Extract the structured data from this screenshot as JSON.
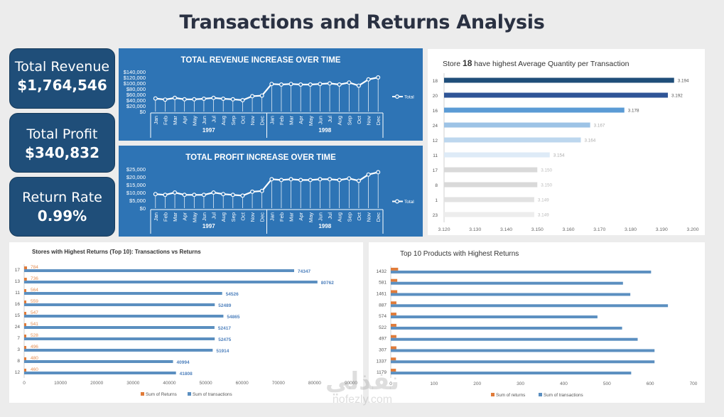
{
  "title": "Transactions and Returns Analysis",
  "colors": {
    "kpi_bg": "#1f4e79",
    "blue_panel": "#2e74b5",
    "bar_blue": "#5b8fc0",
    "bar_orange": "#e07b39",
    "label_orange": "#e38b4f"
  },
  "kpis": [
    {
      "label": "Total Revenue",
      "value": "$1,764,546"
    },
    {
      "label": "Total Profit",
      "value": "$340,832"
    },
    {
      "label": "Return Rate",
      "value": "0.99%"
    }
  ],
  "watermark": {
    "arabic": "نفذلي",
    "latin": "nofezly.com"
  },
  "chart_data": [
    {
      "id": "revenue",
      "type": "line",
      "title": "TOTAL REVENUE INCREASE OVER TIME",
      "categories": [
        "Jan",
        "Feb",
        "Mar",
        "Apr",
        "May",
        "Jun",
        "Jul",
        "Aug",
        "Sep",
        "Oct",
        "Nov",
        "Dec",
        "Jan",
        "Feb",
        "Mar",
        "Apr",
        "May",
        "Jun",
        "Jul",
        "Aug",
        "Sep",
        "Oct",
        "Nov",
        "Dec"
      ],
      "groups": [
        {
          "label": "1997",
          "count": 12
        },
        {
          "label": "1998",
          "count": 12
        }
      ],
      "series": [
        {
          "name": "Total",
          "values": [
            46000,
            42000,
            48000,
            43000,
            43000,
            45000,
            48000,
            45000,
            43000,
            40000,
            54000,
            56000,
            97000,
            95000,
            97000,
            95000,
            95000,
            97000,
            99000,
            95000,
            102000,
            91000,
            113000,
            120000
          ]
        }
      ],
      "yticks": [
        "$140,000",
        "$120,000",
        "$100,000",
        "$80,000",
        "$60,000",
        "$40,000",
        "$20,000",
        "$0"
      ],
      "ylim": [
        0,
        140000
      ],
      "legend": "Total",
      "grid": false
    },
    {
      "id": "profit",
      "type": "line",
      "title": "TOTAL PROFIT INCREASE OVER TIME",
      "categories": [
        "Jan",
        "Feb",
        "Mar",
        "Apr",
        "May",
        "Jun",
        "Jul",
        "Aug",
        "Sep",
        "Oct",
        "Nov",
        "Dec",
        "Jan",
        "Feb",
        "Mar",
        "Apr",
        "May",
        "Jun",
        "Jul",
        "Aug",
        "Sep",
        "Oct",
        "Nov",
        "Dec"
      ],
      "groups": [
        {
          "label": "1997",
          "count": 12
        },
        {
          "label": "1998",
          "count": 12
        }
      ],
      "series": [
        {
          "name": "Total",
          "values": [
            9000,
            8500,
            10000,
            8500,
            8500,
            8500,
            10000,
            9000,
            8500,
            8000,
            10500,
            11000,
            18500,
            18000,
            18500,
            18000,
            18000,
            18500,
            18500,
            18000,
            19000,
            17500,
            21500,
            23000
          ]
        }
      ],
      "yticks": [
        "$25,000",
        "$20,000",
        "$15,000",
        "$10,000",
        "$5,000",
        "$0"
      ],
      "ylim": [
        0,
        25000
      ],
      "legend": "Total",
      "grid": false
    },
    {
      "id": "avg_qty",
      "type": "bar",
      "orientation": "horizontal",
      "title_prefix": "Store ",
      "title_bold": "18",
      "title_suffix": " have highest Average Quantity per Transaction",
      "categories": [
        "18",
        "20",
        "16",
        "24",
        "12",
        "11",
        "17",
        "8",
        "1",
        "23"
      ],
      "values": [
        3.194,
        3.192,
        3.178,
        3.167,
        3.164,
        3.154,
        3.15,
        3.15,
        3.149,
        3.149
      ],
      "value_labels": [
        "3.194",
        "3.192",
        "3.178",
        "3.167",
        "3.164",
        "3.154",
        "3.150",
        "3.150",
        "3.149",
        "3.149"
      ],
      "bar_colors": [
        "#1f4e79",
        "#2f5597",
        "#5b9bd5",
        "#9dc3e6",
        "#bdd7ee",
        "#deebf7",
        "#d9d9d9",
        "#d9d9d9",
        "#e2e2e2",
        "#ededed"
      ],
      "xticks": [
        "3.120",
        "3.130",
        "3.140",
        "3.150",
        "3.160",
        "3.170",
        "3.180",
        "3.190",
        "3.200"
      ],
      "xlim": [
        3.12,
        3.2
      ]
    },
    {
      "id": "stores_returns",
      "type": "bar",
      "orientation": "horizontal",
      "title": "Stores with Highest Returns (Top 10): Transactions vs Returns",
      "categories": [
        "17",
        "13",
        "11",
        "16",
        "15",
        "24",
        "7",
        "3",
        "8",
        "12"
      ],
      "series": [
        {
          "name": "Sum of Returns",
          "values": [
            784,
            736,
            564,
            559,
            547,
            541,
            528,
            496,
            480,
            460
          ]
        },
        {
          "name": "Sum of transactions",
          "values": [
            74347,
            80762,
            54526,
            52489,
            54865,
            52417,
            52475,
            51914,
            40994,
            41808
          ]
        }
      ],
      "xticks": [
        "0",
        "10000",
        "20000",
        "30000",
        "40000",
        "50000",
        "60000",
        "70000",
        "80000",
        "90000"
      ],
      "xlim": [
        0,
        90000
      ]
    },
    {
      "id": "products_returns",
      "type": "bar",
      "orientation": "horizontal",
      "title": "Top 10 Products with Highest Returns",
      "categories": [
        "1432",
        "581",
        "1461",
        "887",
        "574",
        "522",
        "497",
        "307",
        "1337",
        "1179"
      ],
      "series": [
        {
          "name": "Sum of returns",
          "values": [
            17,
            15,
            15,
            13,
            13,
            13,
            13,
            13,
            12,
            12
          ]
        },
        {
          "name": "Sum of transactions",
          "values": [
            602,
            537,
            554,
            641,
            478,
            535,
            571,
            610,
            610,
            556
          ]
        }
      ],
      "xticks": [
        "0",
        "100",
        "200",
        "300",
        "400",
        "500",
        "600",
        "700"
      ],
      "xlim": [
        0,
        700
      ]
    }
  ]
}
